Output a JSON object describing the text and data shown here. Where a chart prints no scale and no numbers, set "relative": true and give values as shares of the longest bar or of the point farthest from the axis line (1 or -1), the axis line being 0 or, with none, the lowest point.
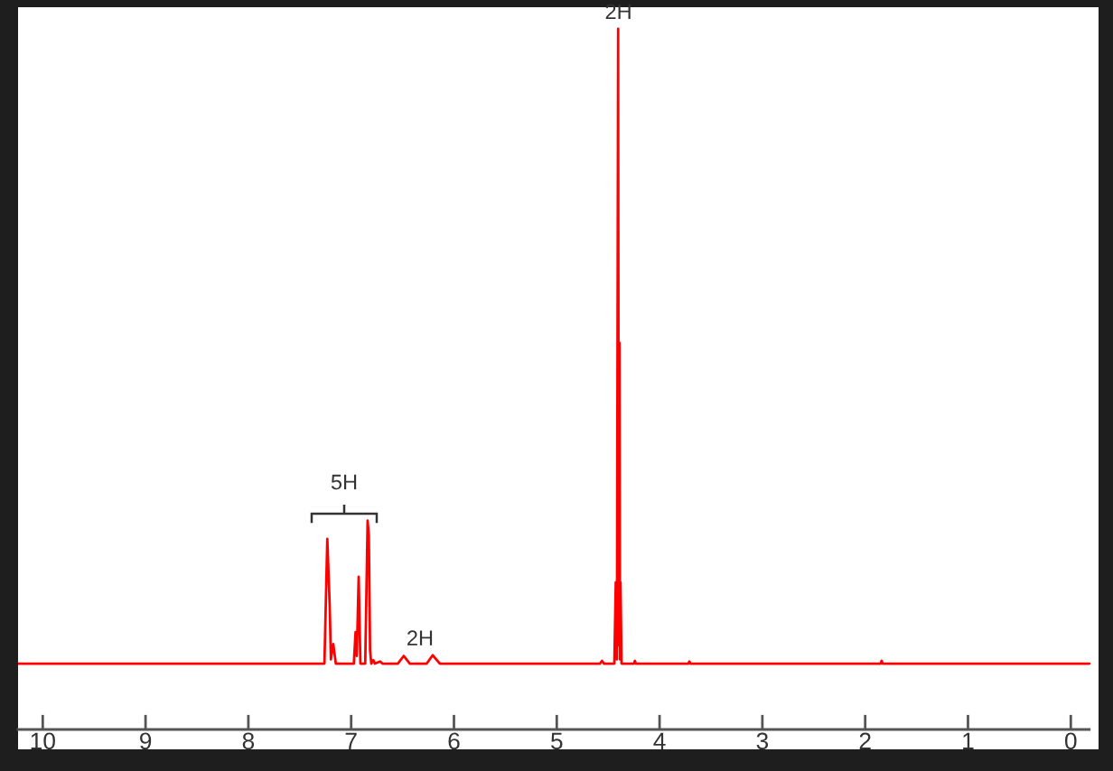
{
  "chart_data": {
    "type": "line",
    "relative": true,
    "color": "#ff0000",
    "x": [
      10.24,
      9.0,
      8.0,
      7.5,
      7.26,
      7.232,
      7.209,
      7.197,
      7.174,
      7.149,
      7.0,
      6.974,
      6.957,
      6.945,
      6.927,
      6.91,
      6.863,
      6.84,
      6.828,
      6.816,
      6.804,
      6.785,
      6.769,
      6.72,
      6.693,
      6.546,
      6.488,
      6.429,
      6.265,
      6.207,
      6.137,
      5.0,
      4.58,
      4.56,
      4.54,
      4.44,
      4.426,
      4.415,
      4.403,
      4.397,
      4.39,
      4.385,
      4.38,
      4.37,
      4.25,
      4.24,
      4.23,
      3.72,
      3.71,
      3.7,
      1.85,
      1.84,
      1.83,
      -0.18
    ],
    "values": [
      0.094,
      0.094,
      0.094,
      0.094,
      0.094,
      0.272,
      0.178,
      0.1,
      0.122,
      0.094,
      0.094,
      0.094,
      0.139,
      0.105,
      0.218,
      0.094,
      0.094,
      0.298,
      0.277,
      0.113,
      0.094,
      0.099,
      0.094,
      0.097,
      0.094,
      0.094,
      0.105,
      0.094,
      0.094,
      0.106,
      0.094,
      0.094,
      0.094,
      0.098,
      0.094,
      0.094,
      0.21,
      0.1,
      1.0,
      0.12,
      0.552,
      0.1,
      0.21,
      0.094,
      0.094,
      0.098,
      0.094,
      0.094,
      0.097,
      0.094,
      0.094,
      0.098,
      0.094,
      0.094
    ],
    "xlim": [
      10.24,
      -0.27
    ],
    "xticks": [
      10,
      9,
      8,
      7,
      6,
      5,
      4,
      3,
      2,
      1,
      0
    ],
    "tick_labels": "x",
    "annotations": [
      "5H",
      {
        "text": "2H",
        "x": 6.33,
        "y": 0.106
      },
      {
        "text": "2H",
        "x": 4.4,
        "y": 1.0
      }
    ]
  }
}
